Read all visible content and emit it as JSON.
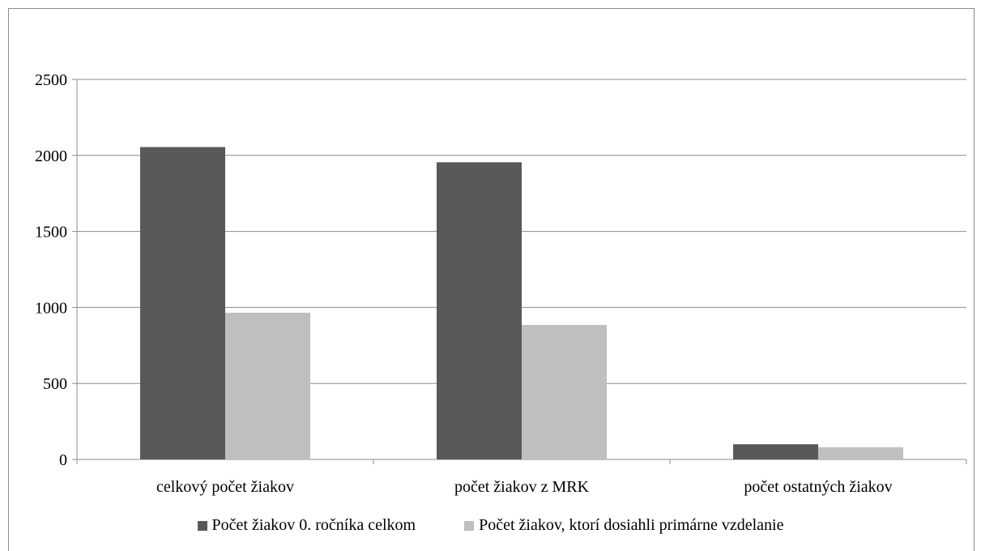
{
  "chart_data": {
    "type": "bar",
    "categories": [
      "celkový počet žiakov",
      "počet žiakov z MRK",
      "počet ostatných žiakov"
    ],
    "series": [
      {
        "name": "Počet žiakov 0. ročníka celkom",
        "values": [
          2055,
          1955,
          100
        ],
        "color": "#595959"
      },
      {
        "name": "Počet žiakov, ktorí dosiahli primárne vzdelanie",
        "values": [
          965,
          885,
          80
        ],
        "color": "#bfbfbf"
      }
    ],
    "ylim": [
      0,
      2500
    ],
    "yticks": [
      0,
      500,
      1000,
      1500,
      2000,
      2500
    ],
    "grid": true,
    "legend_position": "bottom"
  }
}
